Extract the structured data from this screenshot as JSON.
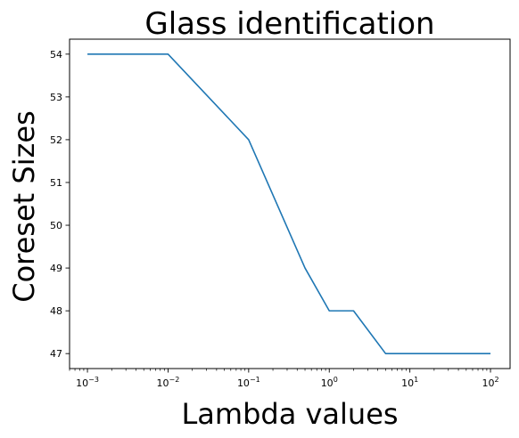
{
  "chart_data": {
    "type": "line",
    "title": "Glass identification",
    "xlabel": "Lambda values",
    "ylabel": "Coreset Sizes",
    "x_scale": "log",
    "x": [
      0.001,
      0.01,
      0.1,
      0.5,
      1,
      2,
      5,
      10,
      100
    ],
    "series": [
      {
        "values": [
          54,
          54,
          52,
          49,
          48,
          48,
          47,
          47,
          47
        ],
        "color": "#1f77b4"
      }
    ],
    "xlim": [
      0.0006,
      175
    ],
    "ylim": [
      46.65,
      54.35
    ],
    "x_ticks": [
      {
        "value": 0.001,
        "base": "10",
        "exp": "−3"
      },
      {
        "value": 0.01,
        "base": "10",
        "exp": "−2"
      },
      {
        "value": 0.1,
        "base": "10",
        "exp": "−1"
      },
      {
        "value": 1,
        "base": "10",
        "exp": "0"
      },
      {
        "value": 10,
        "base": "10",
        "exp": "1"
      },
      {
        "value": 100,
        "base": "10",
        "exp": "2"
      }
    ],
    "y_ticks": [
      47,
      48,
      49,
      50,
      51,
      52,
      53,
      54
    ],
    "grid": false,
    "legend": "none"
  }
}
